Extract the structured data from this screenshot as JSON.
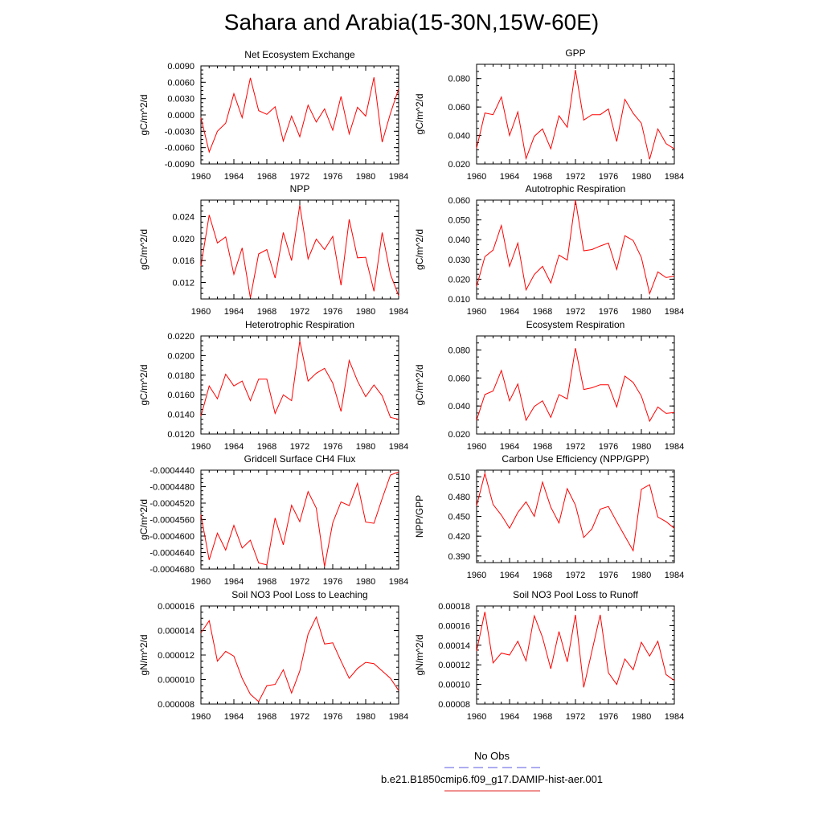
{
  "page_title": "Sahara and Arabia(15-30N,15W-60E)",
  "legend": {
    "items": [
      {
        "label": "No Obs",
        "color": "#5a5ae0",
        "dash": true
      },
      {
        "label": "b.e21.B1850cmip6.f09_g17.DAMIP-hist-aer.001",
        "color": "#e02020",
        "dash": false
      }
    ]
  },
  "colors": {
    "series": "#ff0000",
    "axis": "#000000"
  },
  "chart_data": [
    {
      "type": "line",
      "title": "Net Ecosystem Exchange",
      "xlabel": "",
      "ylabel": "gC/m^2/d",
      "xlim": [
        1960,
        1984
      ],
      "ylim": [
        -0.009,
        0.009
      ],
      "xticks": [
        "1960",
        "1964",
        "1968",
        "1972",
        "1976",
        "1980",
        "1984"
      ],
      "yticks": [
        "-0.0090",
        "-0.0060",
        "-0.0030",
        "0.0000",
        "0.0030",
        "0.0060",
        "0.0090"
      ],
      "yticks_values": [
        -0.009,
        -0.006,
        -0.003,
        0.0,
        0.003,
        0.006,
        0.009
      ],
      "x": [
        1960,
        1961,
        1962,
        1963,
        1964,
        1965,
        1966,
        1967,
        1968,
        1969,
        1970,
        1971,
        1972,
        1973,
        1974,
        1975,
        1976,
        1977,
        1978,
        1979,
        1980,
        1981,
        1982,
        1983,
        1984
      ],
      "series": [
        {
          "values": [
            -0.0005,
            -0.0068,
            -0.003,
            -0.0015,
            0.0039,
            -0.0005,
            0.0068,
            0.0008,
            0.0001,
            0.0015,
            -0.0048,
            -0.0002,
            -0.004,
            0.0018,
            -0.0013,
            0.0011,
            -0.0028,
            0.0034,
            -0.0035,
            0.0014,
            -0.0002,
            0.0069,
            -0.005,
            0.0003,
            0.0048
          ]
        }
      ]
    },
    {
      "type": "line",
      "title": "GPP",
      "xlabel": "",
      "ylabel": "gC/m^2/d",
      "xlim": [
        1960,
        1984
      ],
      "ylim": [
        0.02,
        0.09
      ],
      "xticks": [
        "1960",
        "1964",
        "1968",
        "1972",
        "1976",
        "1980",
        "1984"
      ],
      "yticks": [
        "0.020",
        "0.040",
        "0.060",
        "0.080"
      ],
      "yticks_values": [
        0.02,
        0.04,
        0.06,
        0.08
      ],
      "x": [
        1960,
        1961,
        1962,
        1963,
        1964,
        1965,
        1966,
        1967,
        1968,
        1969,
        1970,
        1971,
        1972,
        1973,
        1974,
        1975,
        1976,
        1977,
        1978,
        1979,
        1980,
        1981,
        1982,
        1983,
        1984
      ],
      "series": [
        {
          "values": [
            0.031,
            0.0558,
            0.0546,
            0.067,
            0.04,
            0.0566,
            0.0238,
            0.0394,
            0.0446,
            0.0306,
            0.0538,
            0.0458,
            0.086,
            0.0508,
            0.0546,
            0.0546,
            0.0586,
            0.0358,
            0.0654,
            0.0556,
            0.0486,
            0.0232,
            0.0446,
            0.0342,
            0.0306
          ]
        }
      ]
    },
    {
      "type": "line",
      "title": "NPP",
      "xlabel": "",
      "ylabel": "gC/m^2/d",
      "xlim": [
        1960,
        1984
      ],
      "ylim": [
        0.009,
        0.027
      ],
      "xticks": [
        "1960",
        "1964",
        "1968",
        "1972",
        "1976",
        "1980",
        "1984"
      ],
      "yticks": [
        "0.012",
        "0.016",
        "0.020",
        "0.024"
      ],
      "yticks_values": [
        0.012,
        0.016,
        0.02,
        0.024
      ],
      "x": [
        1960,
        1961,
        1962,
        1963,
        1964,
        1965,
        1966,
        1967,
        1968,
        1969,
        1970,
        1971,
        1972,
        1973,
        1974,
        1975,
        1976,
        1977,
        1978,
        1979,
        1980,
        1981,
        1982,
        1983,
        1984
      ],
      "series": [
        {
          "values": [
            0.015,
            0.0243,
            0.0192,
            0.0203,
            0.0135,
            0.0183,
            0.0092,
            0.0172,
            0.018,
            0.0128,
            0.0211,
            0.016,
            0.0261,
            0.0163,
            0.0199,
            0.018,
            0.0204,
            0.0115,
            0.0235,
            0.0165,
            0.0166,
            0.0104,
            0.0211,
            0.0135,
            0.0096
          ]
        }
      ]
    },
    {
      "type": "line",
      "title": "Autotrophic Respiration",
      "xlabel": "",
      "ylabel": "gC/m^2/d",
      "xlim": [
        1960,
        1984
      ],
      "ylim": [
        0.01,
        0.06
      ],
      "xticks": [
        "1960",
        "1964",
        "1968",
        "1972",
        "1976",
        "1980",
        "1984"
      ],
      "yticks": [
        "0.010",
        "0.020",
        "0.030",
        "0.040",
        "0.050",
        "0.060"
      ],
      "yticks_values": [
        0.01,
        0.02,
        0.03,
        0.04,
        0.05,
        0.06
      ],
      "x": [
        1960,
        1961,
        1962,
        1963,
        1964,
        1965,
        1966,
        1967,
        1968,
        1969,
        1970,
        1971,
        1972,
        1973,
        1974,
        1975,
        1976,
        1977,
        1978,
        1979,
        1980,
        1981,
        1982,
        1983,
        1984
      ],
      "series": [
        {
          "values": [
            0.0163,
            0.0314,
            0.0347,
            0.0472,
            0.0265,
            0.0383,
            0.0146,
            0.0224,
            0.0265,
            0.0181,
            0.0322,
            0.0297,
            0.06,
            0.0344,
            0.035,
            0.0368,
            0.0383,
            0.0249,
            0.042,
            0.0396,
            0.031,
            0.0127,
            0.0237,
            0.0208,
            0.0216
          ]
        }
      ]
    },
    {
      "type": "line",
      "title": "Heterotrophic Respiration",
      "xlabel": "",
      "ylabel": "gC/m^2/d",
      "xlim": [
        1960,
        1984
      ],
      "ylim": [
        0.012,
        0.022
      ],
      "xticks": [
        "1960",
        "1964",
        "1968",
        "1972",
        "1976",
        "1980",
        "1984"
      ],
      "yticks": [
        "0.0120",
        "0.0140",
        "0.0160",
        "0.0180",
        "0.0200",
        "0.0220"
      ],
      "yticks_values": [
        0.012,
        0.014,
        0.016,
        0.018,
        0.02,
        0.022
      ],
      "x": [
        1960,
        1961,
        1962,
        1963,
        1964,
        1965,
        1966,
        1967,
        1968,
        1969,
        1970,
        1971,
        1972,
        1973,
        1974,
        1975,
        1976,
        1977,
        1978,
        1979,
        1980,
        1981,
        1982,
        1983,
        1984
      ],
      "series": [
        {
          "values": [
            0.0138,
            0.0169,
            0.0156,
            0.0181,
            0.0169,
            0.0174,
            0.0154,
            0.0176,
            0.0176,
            0.0141,
            0.016,
            0.0154,
            0.0215,
            0.0174,
            0.0182,
            0.0187,
            0.0172,
            0.0143,
            0.0195,
            0.0174,
            0.0158,
            0.017,
            0.0159,
            0.0137,
            0.0135
          ]
        }
      ]
    },
    {
      "type": "line",
      "title": "Ecosystem Respiration",
      "xlabel": "",
      "ylabel": "gC/m^2/d",
      "xlim": [
        1960,
        1984
      ],
      "ylim": [
        0.02,
        0.09
      ],
      "xticks": [
        "1960",
        "1964",
        "1968",
        "1972",
        "1976",
        "1980",
        "1984"
      ],
      "yticks": [
        "0.020",
        "0.040",
        "0.060",
        "0.080"
      ],
      "yticks_values": [
        0.02,
        0.04,
        0.06,
        0.08
      ],
      "x": [
        1960,
        1961,
        1962,
        1963,
        1964,
        1965,
        1966,
        1967,
        1968,
        1969,
        1970,
        1971,
        1972,
        1973,
        1974,
        1975,
        1976,
        1977,
        1978,
        1979,
        1980,
        1981,
        1982,
        1983,
        1984
      ],
      "series": [
        {
          "values": [
            0.0298,
            0.0482,
            0.0507,
            0.0653,
            0.0437,
            0.0557,
            0.0298,
            0.0397,
            0.0437,
            0.0318,
            0.0482,
            0.0451,
            0.0813,
            0.0518,
            0.053,
            0.0552,
            0.0552,
            0.0393,
            0.0613,
            0.0568,
            0.0471,
            0.0292,
            0.0393,
            0.0347,
            0.0353
          ]
        }
      ]
    },
    {
      "type": "line",
      "title": "Gridcell Surface CH4 Flux",
      "xlabel": "",
      "ylabel": "gC/m^2/d",
      "xlim": [
        1960,
        1984
      ],
      "ylim": [
        -0.000468,
        -0.000444
      ],
      "xticks": [
        "1960",
        "1964",
        "1968",
        "1972",
        "1976",
        "1980",
        "1984"
      ],
      "yticks": [
        "-0.0004680",
        "-0.0004640",
        "-0.0004600",
        "-0.0004560",
        "-0.0004520",
        "-0.0004480",
        "-0.0004440"
      ],
      "yticks_values": [
        -0.000468,
        -0.000464,
        -0.00046,
        -0.000456,
        -0.000452,
        -0.000448,
        -0.000444
      ],
      "x": [
        1960,
        1961,
        1962,
        1963,
        1964,
        1965,
        1966,
        1967,
        1968,
        1969,
        1970,
        1971,
        1972,
        1973,
        1974,
        1975,
        1976,
        1977,
        1978,
        1979,
        1980,
        1981,
        1982,
        1983,
        1984
      ],
      "series": [
        {
          "values": [
            -0.0004548,
            -0.0004658,
            -0.0004593,
            -0.0004634,
            -0.0004574,
            -0.0004629,
            -0.000461,
            -0.0004665,
            -0.000467,
            -0.0004556,
            -0.0004621,
            -0.0004525,
            -0.0004565,
            -0.0004492,
            -0.0004532,
            -0.0004674,
            -0.0004568,
            -0.0004517,
            -0.0004526,
            -0.0004472,
            -0.0004566,
            -0.0004569,
            -0.0004509,
            -0.0004452,
            -0.0004444
          ]
        }
      ]
    },
    {
      "type": "line",
      "title": "Carbon Use Efficiency (NPP/GPP)",
      "xlabel": "",
      "ylabel": "NPP/GPP",
      "xlim": [
        1960,
        1984
      ],
      "ylim": [
        0.38,
        0.52
      ],
      "xticks": [
        "1960",
        "1964",
        "1968",
        "1972",
        "1976",
        "1980",
        "1984"
      ],
      "yticks": [
        "0.390",
        "0.420",
        "0.450",
        "0.480",
        "0.510"
      ],
      "yticks_values": [
        0.39,
        0.42,
        0.45,
        0.48,
        0.51
      ],
      "x": [
        1960,
        1961,
        1962,
        1963,
        1964,
        1965,
        1966,
        1967,
        1968,
        1969,
        1970,
        1971,
        1972,
        1973,
        1974,
        1975,
        1976,
        1977,
        1978,
        1979,
        1980,
        1981,
        1982,
        1983,
        1984
      ],
      "series": [
        {
          "values": [
            0.466,
            0.515,
            0.468,
            0.452,
            0.432,
            0.456,
            0.472,
            0.45,
            0.502,
            0.464,
            0.44,
            0.492,
            0.467,
            0.418,
            0.431,
            0.461,
            0.465,
            0.442,
            0.42,
            0.398,
            0.491,
            0.498,
            0.449,
            0.442,
            0.432
          ]
        }
      ]
    },
    {
      "type": "line",
      "title": "Soil NO3 Pool Loss to Leaching",
      "xlabel": "",
      "ylabel": "gN/m^2/d",
      "xlim": [
        1960,
        1984
      ],
      "ylim": [
        8e-06,
        1.6e-05
      ],
      "xticks": [
        "1960",
        "1964",
        "1968",
        "1972",
        "1976",
        "1980",
        "1984"
      ],
      "yticks": [
        "0.000008",
        "0.000010",
        "0.000012",
        "0.000014",
        "0.000016"
      ],
      "yticks_values": [
        8e-06,
        1e-05,
        1.2e-05,
        1.4e-05,
        1.6e-05
      ],
      "x": [
        1960,
        1961,
        1962,
        1963,
        1964,
        1965,
        1966,
        1967,
        1968,
        1969,
        1970,
        1971,
        1972,
        1973,
        1974,
        1975,
        1976,
        1977,
        1978,
        1979,
        1980,
        1981,
        1982,
        1983,
        1984
      ],
      "series": [
        {
          "values": [
            1.38e-05,
            1.48e-05,
            1.15e-05,
            1.23e-05,
            1.19e-05,
            1.01e-05,
            8.8e-06,
            8.2e-06,
            9.5e-06,
            9.6e-06,
            1.08e-05,
            8.9e-06,
            1.07e-05,
            1.37e-05,
            1.51e-05,
            1.29e-05,
            1.3e-05,
            1.15e-05,
            1.01e-05,
            1.09e-05,
            1.14e-05,
            1.13e-05,
            1.07e-05,
            1.01e-05,
            9.1e-06
          ]
        }
      ]
    },
    {
      "type": "line",
      "title": "Soil NO3 Pool Loss to Runoff",
      "xlabel": "",
      "ylabel": "gN/m^2/d",
      "xlim": [
        1960,
        1984
      ],
      "ylim": [
        8e-05,
        0.00018
      ],
      "xticks": [
        "1960",
        "1964",
        "1968",
        "1972",
        "1976",
        "1980",
        "1984"
      ],
      "yticks": [
        "0.00008",
        "0.00010",
        "0.00012",
        "0.00014",
        "0.00016",
        "0.00018"
      ],
      "yticks_values": [
        8e-05,
        0.0001,
        0.00012,
        0.00014,
        0.00016,
        0.00018
      ],
      "x": [
        1960,
        1961,
        1962,
        1963,
        1964,
        1965,
        1966,
        1967,
        1968,
        1969,
        1970,
        1971,
        1972,
        1973,
        1974,
        1975,
        1976,
        1977,
        1978,
        1979,
        1980,
        1981,
        1982,
        1983,
        1984
      ],
      "series": [
        {
          "values": [
            0.000134,
            0.000174,
            0.000122,
            0.000132,
            0.00013,
            0.000144,
            0.000124,
            0.00017,
            0.000148,
            0.000116,
            0.000154,
            0.000123,
            0.000171,
            9.7e-05,
            0.000134,
            0.000171,
            0.000112,
            0.0001,
            0.000126,
            0.000115,
            0.000143,
            0.000129,
            0.000144,
            0.00011,
            0.000104
          ]
        }
      ]
    }
  ]
}
